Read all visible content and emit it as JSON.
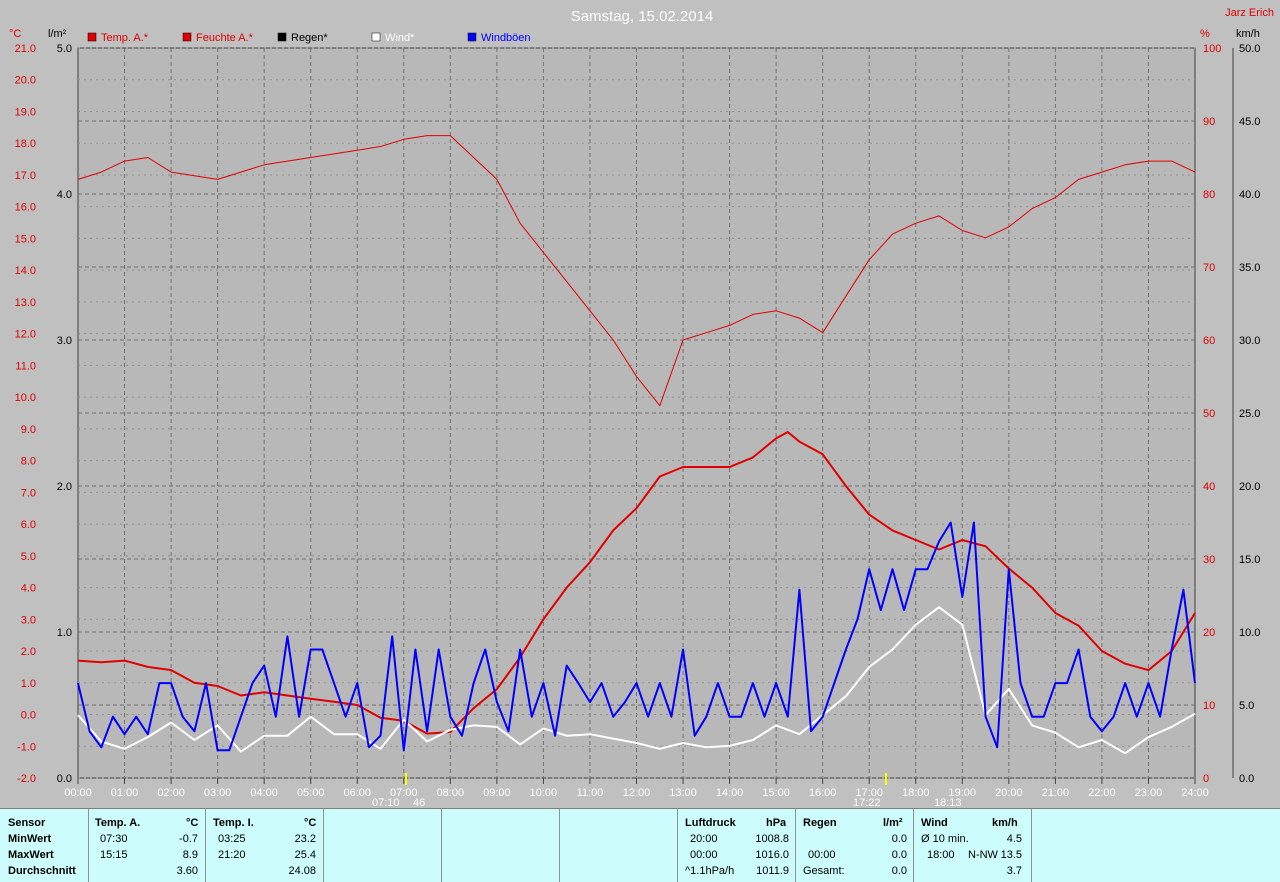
{
  "header": {
    "title": "Samstag, 15.02.2014",
    "author": "Jarz Erich"
  },
  "axis_units": {
    "temp": "°C",
    "rain": "l/m²",
    "humidity": "%",
    "wind": "km/h"
  },
  "legend": [
    {
      "label": "Temp. A.*",
      "color": "#e00000",
      "text_color": "#e00000"
    },
    {
      "label": "Feuchte A.*",
      "color": "#e00000",
      "text_color": "#e00000"
    },
    {
      "label": "Regen*",
      "color": "#000000",
      "text_color": "#000000"
    },
    {
      "label": "Wind*",
      "color": "#ffffff",
      "text_color": "#ffffff"
    },
    {
      "label": "Windböen",
      "color": "#0000ff",
      "text_color": "#0000ff"
    }
  ],
  "chart_data": {
    "type": "line",
    "title": "Samstag, 15.02.2014",
    "x_ticks": [
      "00:00",
      "01:00",
      "02:00",
      "03:00",
      "04:00",
      "05:00",
      "06:00",
      "07:00",
      "08:00",
      "09:00",
      "10:00",
      "11:00",
      "12:00",
      "13:00",
      "14:00",
      "15:00",
      "16:00",
      "17:00",
      "18:00",
      "19:00",
      "20:00",
      "21:00",
      "22:00",
      "23:00",
      "24:00"
    ],
    "xlim": [
      0,
      24
    ],
    "axes": {
      "temp": {
        "label": "°C",
        "lim": [
          -2,
          21
        ],
        "ticks": [
          "-2.0",
          "-1.0",
          "0.0",
          "1.0",
          "2.0",
          "3.0",
          "4.0",
          "5.0",
          "6.0",
          "7.0",
          "8.0",
          "9.0",
          "10.0",
          "11.0",
          "12.0",
          "13.0",
          "14.0",
          "15.0",
          "16.0",
          "17.0",
          "18.0",
          "19.0",
          "20.0",
          "21.0"
        ]
      },
      "rain": {
        "label": "l/m²",
        "lim": [
          0,
          5
        ],
        "ticks": [
          "0.0",
          "1.0",
          "2.0",
          "3.0",
          "4.0",
          "5.0"
        ]
      },
      "humidity": {
        "label": "%",
        "lim": [
          0,
          100
        ],
        "ticks": [
          "0",
          "10",
          "20",
          "30",
          "40",
          "50",
          "60",
          "70",
          "80",
          "90",
          "100"
        ]
      },
      "wind": {
        "label": "km/h",
        "lim": [
          0,
          50
        ],
        "ticks": [
          "0.0",
          "5.0",
          "10.0",
          "15.0",
          "20.0",
          "25.0",
          "30.0",
          "35.0",
          "40.0",
          "45.0",
          "50.0"
        ]
      }
    },
    "series": [
      {
        "name": "Temp. A.*",
        "axis": "temp",
        "color": "#e00000",
        "x": [
          0,
          0.5,
          1,
          1.5,
          2,
          2.5,
          3,
          3.5,
          4,
          4.5,
          5,
          5.5,
          6,
          6.5,
          7,
          7.5,
          8,
          8.5,
          9,
          9.5,
          10,
          10.5,
          11,
          11.5,
          12,
          12.5,
          13,
          13.5,
          14,
          14.5,
          15,
          15.25,
          15.5,
          16,
          16.5,
          17,
          17.5,
          18,
          18.5,
          19,
          19.5,
          20,
          20.5,
          21,
          21.5,
          22,
          22.5,
          23,
          23.5,
          24
        ],
        "values": [
          1.7,
          1.65,
          1.7,
          1.5,
          1.4,
          1.0,
          0.9,
          0.6,
          0.7,
          0.6,
          0.5,
          0.4,
          0.3,
          -0.1,
          -0.2,
          -0.6,
          -0.55,
          0.2,
          0.8,
          1.8,
          3.0,
          4.0,
          4.8,
          5.8,
          6.5,
          7.5,
          7.8,
          7.8,
          7.8,
          8.1,
          8.7,
          8.9,
          8.6,
          8.2,
          7.2,
          6.3,
          5.8,
          5.5,
          5.2,
          5.5,
          5.3,
          4.6,
          4.0,
          3.2,
          2.8,
          2.0,
          1.6,
          1.4,
          2.0,
          3.2
        ]
      },
      {
        "name": "Feuchte A.*",
        "axis": "humidity",
        "color": "#e00000",
        "x": [
          0,
          0.5,
          1,
          1.5,
          2,
          2.5,
          3,
          3.5,
          4,
          4.5,
          5,
          5.5,
          6,
          6.5,
          7,
          7.5,
          8,
          8.5,
          9,
          9.5,
          10,
          10.5,
          11,
          11.5,
          12,
          12.5,
          13,
          13.5,
          14,
          14.5,
          15,
          15.5,
          16,
          16.5,
          17,
          17.5,
          18,
          18.5,
          19,
          19.5,
          20,
          20.5,
          21,
          21.5,
          22,
          22.5,
          23,
          23.5,
          24
        ],
        "values": [
          82,
          83,
          84.5,
          85,
          83,
          82.5,
          82,
          83,
          84,
          84.5,
          85,
          85.5,
          86,
          86.5,
          87.5,
          88,
          88,
          85,
          82,
          76,
          72,
          68,
          64,
          60,
          55,
          51,
          60,
          61,
          62,
          63.5,
          64,
          63,
          61,
          66,
          71,
          74.5,
          76,
          77,
          75,
          74,
          75.5,
          78,
          79.5,
          82,
          83,
          84,
          84.5,
          84.5,
          83
        ]
      },
      {
        "name": "Wind*",
        "axis": "wind",
        "color": "#ffffff",
        "x": [
          0,
          0.5,
          1,
          1.5,
          2,
          2.5,
          3,
          3.5,
          4,
          4.5,
          5,
          5.5,
          6,
          6.5,
          7,
          7.5,
          8,
          8.5,
          9,
          9.5,
          10,
          10.5,
          11,
          11.5,
          12,
          12.5,
          13,
          13.5,
          14,
          14.5,
          15,
          15.5,
          16,
          16.5,
          17,
          17.5,
          18,
          18.5,
          19,
          19.5,
          20,
          20.5,
          21,
          21.5,
          22,
          22.5,
          23,
          23.5,
          24
        ],
        "values": [
          4.3,
          2.5,
          2.0,
          2.8,
          3.8,
          2.6,
          3.6,
          1.8,
          2.9,
          2.9,
          4.2,
          3.0,
          3.0,
          2.0,
          4.0,
          2.5,
          3.3,
          3.6,
          3.5,
          2.3,
          3.4,
          2.9,
          3.0,
          2.7,
          2.4,
          2.0,
          2.4,
          2.1,
          2.2,
          2.6,
          3.6,
          3.0,
          4.3,
          5.6,
          7.6,
          8.8,
          10.5,
          11.7,
          10.5,
          4.3,
          6.1,
          3.6,
          3.1,
          2.1,
          2.6,
          1.7,
          2.8,
          3.5,
          4.4
        ]
      },
      {
        "name": "Windböen",
        "axis": "wind",
        "color": "#0000ff",
        "x": [
          0,
          0.25,
          0.5,
          0.75,
          1,
          1.25,
          1.5,
          1.75,
          2,
          2.25,
          2.5,
          2.75,
          3,
          3.25,
          3.5,
          3.75,
          4,
          4.25,
          4.5,
          4.75,
          5,
          5.25,
          5.5,
          5.75,
          6,
          6.25,
          6.5,
          6.75,
          7,
          7.25,
          7.5,
          7.75,
          8,
          8.25,
          8.5,
          8.75,
          9,
          9.25,
          9.5,
          9.75,
          10,
          10.25,
          10.5,
          10.75,
          11,
          11.25,
          11.5,
          11.75,
          12,
          12.25,
          12.5,
          12.75,
          13,
          13.25,
          13.5,
          13.75,
          14,
          14.25,
          14.5,
          14.75,
          15,
          15.25,
          15.5,
          15.75,
          16,
          16.25,
          16.5,
          16.75,
          17,
          17.25,
          17.5,
          17.75,
          18,
          18.25,
          18.5,
          18.75,
          19,
          19.25,
          19.5,
          19.75,
          20,
          20.25,
          20.5,
          20.75,
          21,
          21.25,
          21.5,
          21.75,
          22,
          22.25,
          22.5,
          22.75,
          23,
          23.25,
          23.5,
          23.75,
          24
        ],
        "values": [
          6.5,
          3.2,
          2.1,
          4.2,
          3.0,
          4.2,
          3.0,
          6.5,
          6.5,
          4.2,
          3.2,
          6.5,
          1.9,
          1.9,
          4.2,
          6.5,
          7.7,
          4.2,
          9.7,
          4.2,
          8.8,
          8.8,
          6.5,
          4.2,
          6.5,
          2.1,
          2.9,
          9.7,
          1.9,
          8.8,
          3.2,
          8.8,
          4.2,
          2.9,
          6.5,
          8.8,
          5.2,
          3.2,
          8.8,
          4.2,
          6.5,
          2.9,
          7.7,
          6.5,
          5.2,
          6.5,
          4.2,
          5.2,
          6.5,
          4.2,
          6.5,
          4.2,
          8.8,
          2.9,
          4.2,
          6.5,
          4.2,
          4.2,
          6.5,
          4.2,
          6.5,
          4.2,
          12.9,
          3.2,
          4.2,
          6.5,
          8.8,
          10.9,
          14.3,
          11.5,
          14.3,
          11.5,
          14.3,
          14.3,
          16.2,
          17.5,
          12.4,
          17.5,
          4.2,
          2.1,
          14.3,
          6.5,
          4.2,
          4.2,
          6.5,
          6.5,
          8.8,
          4.2,
          3.2,
          4.2,
          6.5,
          4.2,
          6.5,
          4.2,
          8.8,
          12.9,
          6.5
        ]
      }
    ]
  },
  "markers": {
    "sunrise": "07:10",
    "sunrise2": "46",
    "sunset": "17:22",
    "sunset2": "18:13"
  },
  "footer": {
    "sensor": {
      "header": "Sensor",
      "rows": [
        "MinWert",
        "MaxWert",
        "Durchschnitt"
      ]
    },
    "temp_a": {
      "header": "Temp. A.",
      "unit": "°C",
      "rows": [
        {
          "time": "07:30",
          "value": "-0.7"
        },
        {
          "time": "15:15",
          "value": "8.9"
        },
        {
          "time": "",
          "value": "3.60"
        }
      ]
    },
    "temp_i": {
      "header": "Temp. I.",
      "unit": "°C",
      "rows": [
        {
          "time": "03:25",
          "value": "23.2"
        },
        {
          "time": "21:20",
          "value": "25.4"
        },
        {
          "time": "",
          "value": "24.08"
        }
      ]
    },
    "luftdruck": {
      "header": "Luftdruck",
      "unit": "hPa",
      "rows": [
        {
          "time": "20:00",
          "value": "1008.8"
        },
        {
          "time": "00:00",
          "value": "1016.0"
        },
        {
          "time": "^1.1hPa/h",
          "value": "1011.9"
        }
      ]
    },
    "regen": {
      "header": "Regen",
      "unit": "l/m²",
      "rows": [
        {
          "time": "",
          "value": "0.0"
        },
        {
          "time": "00:00",
          "value": "0.0"
        },
        {
          "time": "Gesamt:",
          "value": "0.0"
        }
      ]
    },
    "wind": {
      "header": "Wind",
      "unit": "km/h",
      "rows": [
        {
          "time": "Ø 10 min.",
          "value": "4.5"
        },
        {
          "time": "18:00",
          "dir": "N-NW",
          "value": "13.5"
        },
        {
          "time": "",
          "value": "3.7"
        }
      ]
    }
  }
}
